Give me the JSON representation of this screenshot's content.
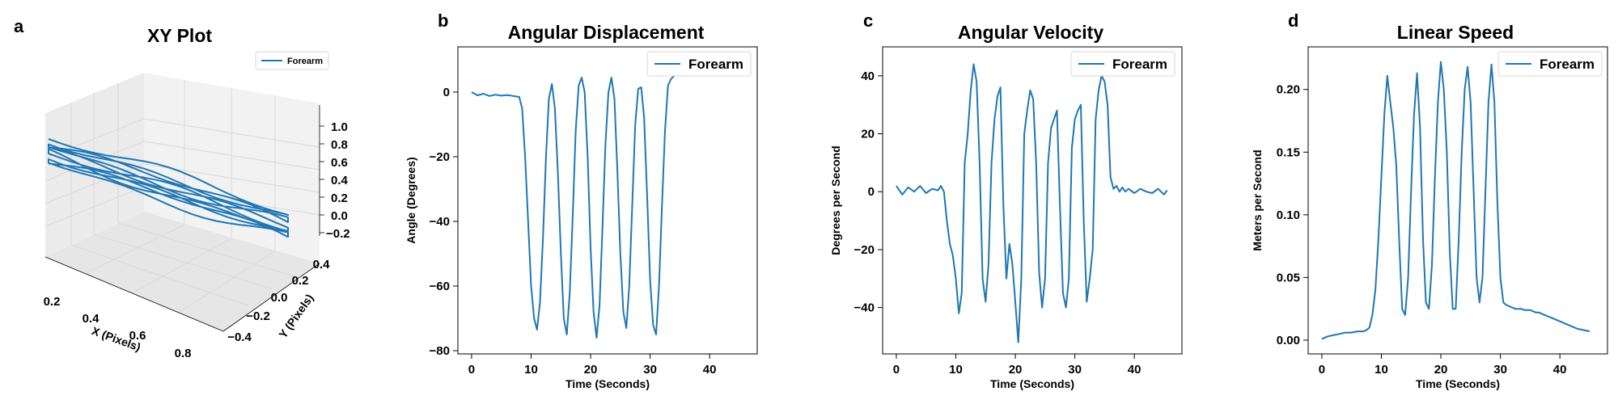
{
  "colors": {
    "series": "#1f77b4",
    "pane_face_back": "#f2f2f2",
    "pane_face_side": "#ebebeb",
    "pane_face_floor": "#e6e6e6",
    "grid": "#d9d9d9",
    "axis": "#000000"
  },
  "chart_data": [
    {
      "panel": "a",
      "type": "line3d",
      "title": "XY Plot",
      "xlabel": "X (Pixels)",
      "ylabel": "Y (Pixels)",
      "zlabel": "",
      "legend": [
        "Forearm"
      ],
      "legend_position": "top-right",
      "xlim": [
        0.17,
        1.0
      ],
      "ylim": [
        -0.5,
        0.5
      ],
      "zlim": [
        -0.25,
        1.05
      ],
      "x_ticks": [
        "0.2",
        "0.4",
        "0.6",
        "0.8"
      ],
      "y_ticks": [
        "0.4",
        "0.2",
        "0.0",
        "−0.2",
        "−0.4"
      ],
      "z_ticks": [
        "1.0",
        "0.8",
        "0.6",
        "0.4",
        "0.2",
        "0.0",
        "−0.2"
      ],
      "grid": true,
      "series": [
        {
          "name": "Forearm",
          "description": "Back-and-forth arm strokes traced in the X-Y plane; the trace oscillates between x≈0.2 and x≈0.92 about ten times at z=0",
          "x_range": [
            0.2,
            0.92
          ],
          "y_range": [
            -0.35,
            0.25
          ],
          "z": 0,
          "strokes": 10
        }
      ]
    },
    {
      "panel": "b",
      "type": "line",
      "title": "Angular Displacement",
      "xlabel": "Time (Seconds)",
      "ylabel": "Angle (Degrees)",
      "xlim": [
        -2.3,
        48
      ],
      "ylim": [
        -81,
        14
      ],
      "x_ticks": [
        0,
        10,
        20,
        30,
        40
      ],
      "y_ticks": [
        0,
        -20,
        -40,
        -60,
        -80
      ],
      "legend": [
        "Forearm"
      ],
      "legend_position": "top-right",
      "grid": false,
      "series": [
        {
          "name": "Forearm",
          "x": [
            0,
            1,
            2,
            3,
            4,
            5,
            6,
            7,
            8,
            8.5,
            9,
            9.5,
            10,
            10.5,
            11,
            11.5,
            12,
            12.5,
            13,
            13.5,
            14,
            14.5,
            15,
            15.5,
            16,
            16.5,
            17,
            17.5,
            18,
            18.5,
            19,
            19.5,
            20,
            20.5,
            21,
            21.5,
            22,
            22.5,
            23,
            23.5,
            24,
            24.5,
            25,
            25.5,
            26,
            26.5,
            27,
            27.5,
            28,
            28.5,
            29,
            29.5,
            30,
            30.5,
            31,
            31.5,
            32,
            32.5,
            33,
            33.5,
            34,
            34.5,
            35,
            35.5,
            36,
            36.5,
            37,
            37.5,
            38
          ],
          "values": [
            0,
            -1,
            -0.5,
            -1.2,
            -0.8,
            -1.1,
            -0.9,
            -1.2,
            -1.5,
            -5,
            -20,
            -40,
            -60,
            -70,
            -73.5,
            -65,
            -45,
            -20,
            -2,
            2.5,
            -5,
            -25,
            -50,
            -70,
            -75,
            -62,
            -38,
            -12,
            2,
            4.5,
            0,
            -20,
            -48,
            -68,
            -76,
            -66,
            -42,
            -16,
            0,
            4.5,
            -2,
            -24,
            -50,
            -68,
            -73,
            -60,
            -35,
            -10,
            1,
            1.5,
            -8,
            -32,
            -58,
            -72,
            -75,
            -60,
            -35,
            -12,
            2,
            4,
            5,
            7,
            8,
            7.5,
            8,
            7,
            6,
            7,
            6
          ]
        }
      ]
    },
    {
      "panel": "c",
      "type": "line",
      "title": "Angular Velocity",
      "xlabel": "Time (Seconds)",
      "ylabel": "Degrees per Second",
      "xlim": [
        -2.3,
        48
      ],
      "ylim": [
        -56,
        50
      ],
      "x_ticks": [
        0,
        10,
        20,
        30,
        40
      ],
      "y_ticks": [
        40,
        20,
        0,
        -20,
        -40
      ],
      "legend": [
        "Forearm"
      ],
      "legend_position": "top-right",
      "grid": false,
      "series": [
        {
          "name": "Forearm",
          "x": [
            0,
            1,
            2,
            3,
            4,
            5,
            6,
            7,
            7.5,
            8,
            8.5,
            9,
            9.5,
            10,
            10.5,
            11,
            11.5,
            12,
            12.5,
            13,
            13.5,
            14,
            14.5,
            15,
            15.5,
            16,
            16.5,
            17,
            17.5,
            18,
            18.5,
            19,
            19.5,
            20,
            20.5,
            21,
            21.5,
            22,
            22.5,
            23,
            23.5,
            24,
            24.5,
            25,
            25.5,
            26,
            26.5,
            27,
            27.5,
            28,
            28.5,
            29,
            29.5,
            30,
            30.5,
            31,
            31.5,
            32,
            32.5,
            33,
            33.5,
            34,
            34.5,
            35,
            35.5,
            36,
            36.5,
            37,
            37.5,
            38,
            38.5,
            39,
            40,
            41,
            42,
            43,
            44,
            45,
            45.5
          ],
          "values": [
            2,
            -1,
            1.5,
            0,
            2,
            -0.5,
            1,
            0.5,
            2,
            0,
            -10,
            -18,
            -22,
            -30,
            -42,
            -35,
            10,
            20,
            35,
            44,
            38,
            10,
            -30,
            -38,
            -25,
            10,
            25,
            33,
            36,
            -5,
            -30,
            -18,
            -25,
            -38,
            -52,
            -30,
            20,
            28,
            35,
            32,
            10,
            -28,
            -40,
            -30,
            10,
            22,
            25,
            28,
            -5,
            -35,
            -40,
            -30,
            15,
            25,
            28,
            30,
            -10,
            -38,
            -30,
            -20,
            25,
            35,
            40,
            38,
            30,
            5,
            1,
            2,
            0,
            1.5,
            0,
            1,
            -0.5,
            1,
            0,
            -0.5,
            1,
            -1,
            0.5
          ]
        }
      ]
    },
    {
      "panel": "d",
      "type": "line",
      "title": "Linear Speed",
      "xlabel": "Time (Seconds)",
      "ylabel": "Meters per Second",
      "xlim": [
        -2.3,
        48
      ],
      "ylim": [
        -0.011,
        0.234
      ],
      "x_ticks": [
        0,
        10,
        20,
        30,
        40
      ],
      "y_ticks": [
        "0.20",
        "0.15",
        "0.10",
        "0.05",
        "0.00"
      ],
      "legend": [
        "Forearm"
      ],
      "legend_position": "top-right",
      "grid": false,
      "series": [
        {
          "name": "Forearm",
          "x": [
            0,
            1,
            2,
            3,
            4,
            5,
            6,
            7,
            7.5,
            8,
            8.5,
            9,
            9.5,
            10,
            10.5,
            11,
            11.5,
            12,
            12.5,
            13,
            13.5,
            14,
            14.5,
            15,
            15.5,
            16,
            16.5,
            17,
            17.5,
            18,
            18.5,
            19,
            19.5,
            20,
            20.5,
            21,
            21.5,
            22,
            22.5,
            23,
            23.5,
            24,
            24.5,
            25,
            25.5,
            26,
            26.5,
            27,
            27.5,
            28,
            28.5,
            29,
            29.5,
            30,
            30.5,
            31,
            31.5,
            32,
            32.5,
            33,
            33.5,
            34,
            34.5,
            35,
            35.5,
            36,
            36.5,
            37,
            38,
            39,
            40,
            41,
            42,
            43,
            44,
            45
          ],
          "values": [
            0.001,
            0.003,
            0.004,
            0.005,
            0.006,
            0.006,
            0.007,
            0.007,
            0.008,
            0.01,
            0.02,
            0.04,
            0.08,
            0.13,
            0.18,
            0.211,
            0.19,
            0.17,
            0.14,
            0.08,
            0.025,
            0.02,
            0.05,
            0.12,
            0.18,
            0.213,
            0.17,
            0.08,
            0.03,
            0.025,
            0.06,
            0.13,
            0.19,
            0.222,
            0.2,
            0.15,
            0.07,
            0.025,
            0.025,
            0.08,
            0.15,
            0.2,
            0.218,
            0.19,
            0.12,
            0.05,
            0.03,
            0.05,
            0.12,
            0.19,
            0.22,
            0.19,
            0.11,
            0.05,
            0.03,
            0.028,
            0.027,
            0.026,
            0.025,
            0.025,
            0.025,
            0.024,
            0.024,
            0.024,
            0.023,
            0.022,
            0.022,
            0.021,
            0.019,
            0.017,
            0.015,
            0.013,
            0.011,
            0.009,
            0.008,
            0.007
          ]
        }
      ]
    }
  ]
}
